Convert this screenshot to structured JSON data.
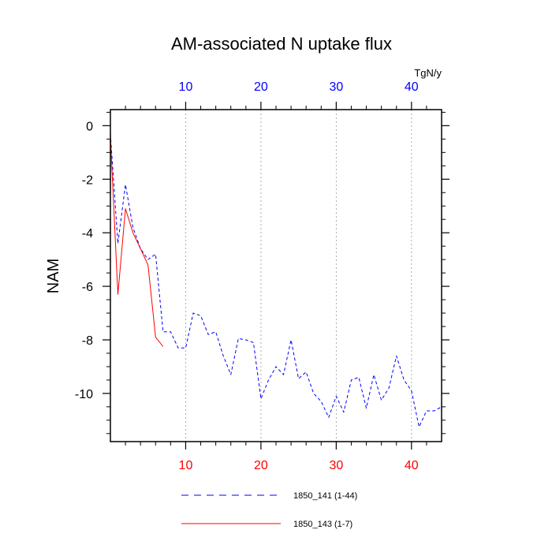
{
  "chart_data": {
    "type": "line",
    "title": "AM-associated N uptake flux",
    "ylabel": "NAM",
    "top_axis_units": "TgN/y",
    "xlim": [
      0,
      44
    ],
    "ylim": [
      -11.8,
      0.6
    ],
    "x_ticks": [
      10,
      20,
      30,
      40
    ],
    "y_ticks": [
      0,
      -2,
      -4,
      -6,
      -8,
      -10
    ],
    "x_tick_labels": [
      "10",
      "20",
      "30",
      "40"
    ],
    "y_tick_labels": [
      "0",
      "-2",
      "-4",
      "-6",
      "-8",
      "-10"
    ],
    "grid": "vertical-dotted",
    "colors": {
      "bottom_ticks": "#ff0000",
      "top_ticks": "#0000ff",
      "axis": "#000000"
    },
    "series": [
      {
        "name": "1850_141 (1-44)",
        "color": "#0000ff",
        "dash": "dashed",
        "x": [
          0,
          1,
          2,
          3,
          4,
          5,
          6,
          7,
          8,
          9,
          10,
          11,
          12,
          13,
          14,
          15,
          16,
          17,
          18,
          19,
          20,
          21,
          22,
          23,
          24,
          25,
          26,
          27,
          28,
          29,
          30,
          31,
          32,
          33,
          34,
          35,
          36,
          37,
          38,
          39,
          40,
          41,
          42,
          43,
          44
        ],
        "values": [
          -0.3,
          -4.4,
          -2.2,
          -3.8,
          -4.6,
          -5.0,
          -4.8,
          -7.7,
          -7.7,
          -8.3,
          -8.3,
          -7.0,
          -7.1,
          -7.8,
          -7.7,
          -8.6,
          -9.3,
          -7.95,
          -8.0,
          -8.1,
          -10.2,
          -9.5,
          -9.0,
          -9.3,
          -8.0,
          -9.45,
          -9.2,
          -10.0,
          -10.3,
          -10.9,
          -10.1,
          -10.7,
          -9.5,
          -9.4,
          -10.55,
          -9.3,
          -10.25,
          -9.8,
          -8.6,
          -9.5,
          -9.9,
          -11.25,
          -10.65,
          -10.65,
          -10.5
        ]
      },
      {
        "name": "1850_143 (1-7)",
        "color": "#ff0000",
        "dash": "solid",
        "x": [
          0,
          1,
          2,
          3,
          4,
          5,
          6,
          7
        ],
        "values": [
          -0.4,
          -6.3,
          -3.1,
          -4.0,
          -4.6,
          -5.2,
          -7.9,
          -8.25
        ]
      }
    ],
    "legend": [
      {
        "label": "1850_141 (1-44)",
        "color": "#0000ff",
        "dash": "dashed"
      },
      {
        "label": "1850_143 (1-7)",
        "color": "#ff0000",
        "dash": "solid"
      }
    ]
  }
}
